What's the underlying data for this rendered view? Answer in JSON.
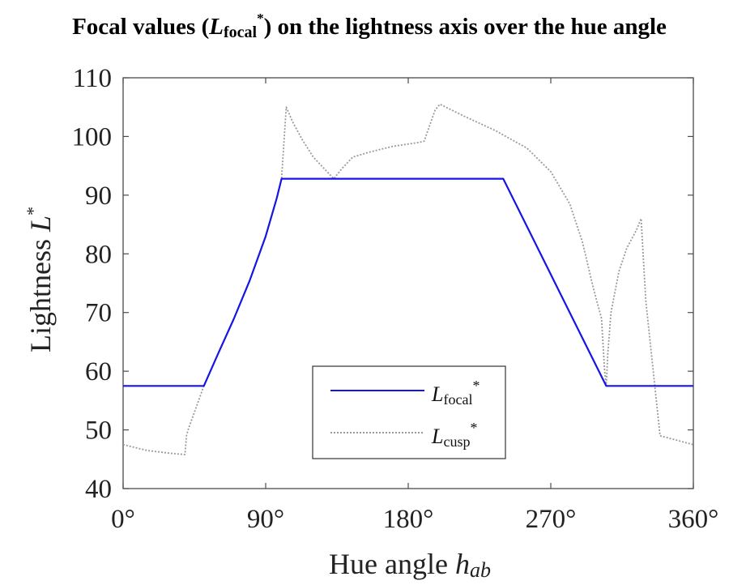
{
  "chart_data": {
    "type": "line",
    "title": {
      "prefix": "Focal values (",
      "var": "L",
      "sub": "focal",
      "sup": "*",
      "suffix": ") on the lightness axis over the hue angle"
    },
    "xlabel": {
      "text": "Hue angle ",
      "var": "h",
      "sub": "ab"
    },
    "ylabel": {
      "text": "Lightness ",
      "var": "L",
      "sup": "*"
    },
    "xlim": [
      0,
      360
    ],
    "ylim": [
      40,
      110
    ],
    "xticks": [
      0,
      90,
      180,
      270,
      360
    ],
    "xtick_labels": [
      "0°",
      "90°",
      "180°",
      "270°",
      "360°"
    ],
    "yticks": [
      40,
      50,
      60,
      70,
      80,
      90,
      100,
      110
    ],
    "ytick_labels": [
      "40",
      "50",
      "60",
      "70",
      "80",
      "90",
      "100",
      "110"
    ],
    "grid": false,
    "legend_position": "bottom-center",
    "series": [
      {
        "name": {
          "var": "L",
          "sub": "focal",
          "sup": "*"
        },
        "color": "#1515e6",
        "style": "solid",
        "x": [
          0,
          51,
          60,
          70,
          80,
          90,
          97,
          100,
          240,
          305,
          360
        ],
        "y": [
          57.5,
          57.5,
          63,
          69,
          75.5,
          83,
          89.5,
          92.8,
          92.8,
          57.5,
          57.5
        ]
      },
      {
        "name": {
          "var": "L",
          "sub": "cusp",
          "sup": "*"
        },
        "color": "#9a9a9a",
        "style": "dotted",
        "x": [
          0,
          15,
          30,
          39,
          40,
          41,
          45,
          51,
          60,
          70,
          80,
          90,
          97,
          100,
          103,
          107,
          113,
          120,
          127,
          133,
          138,
          145,
          155,
          170,
          187,
          190,
          197,
          200,
          215,
          235,
          255,
          270,
          282,
          290,
          297,
          302,
          304,
          305,
          306,
          308,
          313,
          318,
          324,
          327,
          330,
          339,
          350,
          360
        ],
        "y": [
          47.5,
          46.5,
          46,
          45.8,
          49,
          50,
          53,
          57.5,
          63,
          69,
          75.5,
          83,
          89.5,
          92.8,
          105,
          102.5,
          99.5,
          96.5,
          94.5,
          92.8,
          94.5,
          96.5,
          97.3,
          98.3,
          99,
          99.2,
          104.5,
          105.5,
          103.5,
          101,
          98,
          94,
          88.5,
          82,
          74,
          69,
          60,
          57.5,
          63,
          70,
          77,
          81,
          84,
          86,
          72,
          49,
          48.2,
          47.5
        ]
      }
    ]
  }
}
